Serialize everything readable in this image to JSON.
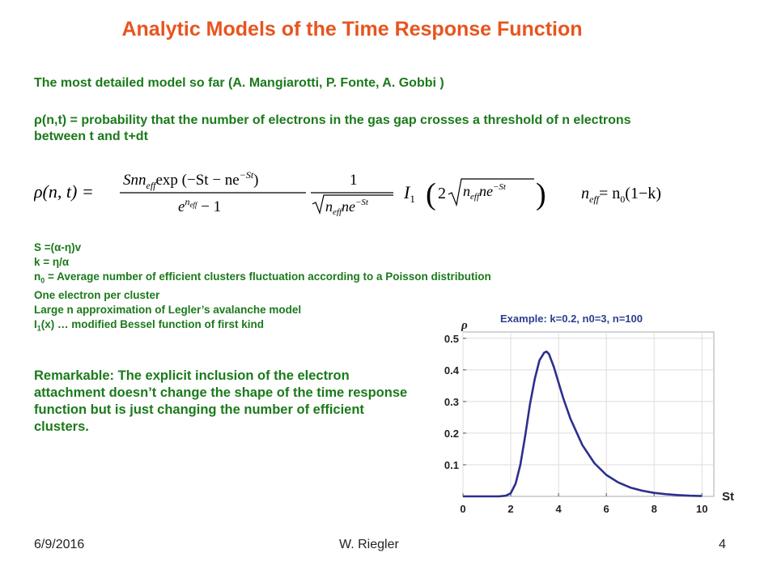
{
  "slide": {
    "title": "Analytic Models of the Time Response Function",
    "title_color": "#e8541e",
    "text_color": "#1b7a1b",
    "line1": "The most detailed model so far (A. Mangiarotti, P. Fonte, A. Gobbi )",
    "line2": "ρ(n,t) = probability that the number of electrons in the gas gap crosses a threshold of n electrons between t and t+dt",
    "formula": {
      "lhs": "ρ(n, t) =",
      "num": "Snn",
      "num_tail": "exp (−St − ne",
      "num_exp": "−St",
      "den_pre": "e",
      "den_tail": " − 1",
      "one": "1",
      "sqrt_text": "n",
      "sqrt_tail": "ne",
      "i1": "I",
      "two": "2",
      "sqrt2_text": "n",
      "sqrt2_tail": "ne",
      "eff": "eff",
      "neff_eq": "= n",
      "n0_sub": "0",
      "one_minus_k": "(1−k)"
    },
    "defs": {
      "s": "S =(α-η)v",
      "k": "k = η/α",
      "n0_pre": "n",
      "n0_sub": "0",
      "n0_text": " = Average number of efficient clusters fluctuation according to a Poisson distribution",
      "one_e": "One electron per cluster",
      "large_n": "Large n approximation of Legler’s avalanche model",
      "i1_pre": "I",
      "i1_sub": "1",
      "i1_text": "(x) … modified Bessel function of first kind"
    },
    "remark": "Remarkable: The explicit inclusion of the electron attachment doesn’t change the shape of the time response function but is just changing the number of efficient clusters.",
    "footer": {
      "date": "6/9/2016",
      "author": "W. Riegler",
      "page": "4"
    }
  },
  "chart_data": {
    "type": "line",
    "title": "Example:  k=0.2, n0=3, n=100",
    "xlabel": "St",
    "ylabel": "ρ",
    "xlim": [
      0,
      10.5
    ],
    "ylim": [
      0,
      0.52
    ],
    "x_ticks": [
      0,
      2,
      4,
      6,
      8,
      10
    ],
    "y_ticks": [
      0.1,
      0.2,
      0.3,
      0.4,
      0.5
    ],
    "grid": true,
    "line_color": "#2b2f8f",
    "series": [
      {
        "x": [
          0,
          1.5,
          1.8,
          2.0,
          2.2,
          2.4,
          2.6,
          2.8,
          3.0,
          3.2,
          3.4,
          3.5,
          3.6,
          3.8,
          4.0,
          4.2,
          4.5,
          5.0,
          5.5,
          6.0,
          6.5,
          7.0,
          7.5,
          8.0,
          8.5,
          9.0,
          9.5,
          10.0
        ],
        "y": [
          0,
          0.0,
          0.002,
          0.01,
          0.04,
          0.1,
          0.19,
          0.29,
          0.37,
          0.43,
          0.455,
          0.458,
          0.45,
          0.41,
          0.36,
          0.31,
          0.245,
          0.162,
          0.105,
          0.068,
          0.044,
          0.028,
          0.018,
          0.011,
          0.007,
          0.004,
          0.002,
          0.001
        ]
      }
    ]
  }
}
